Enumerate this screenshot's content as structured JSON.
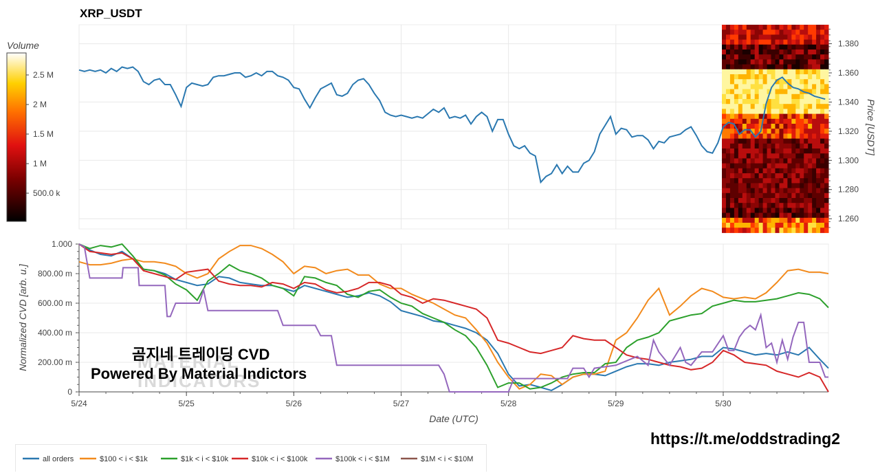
{
  "title": "XRP_USDT",
  "colorbar": {
    "label": "Volume",
    "ticks": [
      "2.5 M",
      "2 M",
      "1.5 M",
      "1 M",
      "500.0 k"
    ]
  },
  "watermark": {
    "line1": "곰지네 트레이딩 CVD",
    "line2": "Powered By Material Indictors",
    "logo_line1": "MATERIAL",
    "logo_line2": "INDICATORS",
    "url": "https://t.me/oddstrading2"
  },
  "chart_data": [
    {
      "type": "line",
      "panel": "price",
      "ylabel": "Price [USDT]",
      "ylim": [
        1.253,
        1.393
      ],
      "y_ticks": [
        "1.380",
        "1.360",
        "1.340",
        "1.320",
        "1.300",
        "1.280",
        "1.260"
      ],
      "x_ticks": [
        "5/24",
        "5/25",
        "5/26",
        "5/27",
        "5/28",
        "5/29",
        "5/30"
      ],
      "xlim_days": [
        0,
        6.98
      ],
      "series": [
        {
          "color": "#2a78b0",
          "x": [
            0,
            0.05,
            0.1,
            0.15,
            0.2,
            0.25,
            0.3,
            0.35,
            0.4,
            0.45,
            0.5,
            0.55,
            0.6,
            0.65,
            0.7,
            0.75,
            0.8,
            0.85,
            0.9,
            0.95,
            1.0,
            1.05,
            1.1,
            1.15,
            1.2,
            1.25,
            1.3,
            1.35,
            1.4,
            1.45,
            1.5,
            1.55,
            1.6,
            1.65,
            1.7,
            1.75,
            1.8,
            1.85,
            1.9,
            1.95,
            2.0,
            2.05,
            2.1,
            2.15,
            2.2,
            2.25,
            2.3,
            2.35,
            2.4,
            2.45,
            2.5,
            2.55,
            2.6,
            2.65,
            2.7,
            2.75,
            2.8,
            2.85,
            2.9,
            2.95,
            3.0,
            3.05,
            3.1,
            3.15,
            3.2,
            3.25,
            3.3,
            3.35,
            3.4,
            3.45,
            3.5,
            3.55,
            3.6,
            3.65,
            3.7,
            3.75,
            3.8,
            3.85,
            3.9,
            3.95,
            4.0,
            4.05,
            4.1,
            4.15,
            4.2,
            4.25,
            4.3,
            4.35,
            4.4,
            4.45,
            4.5,
            4.55,
            4.6,
            4.65,
            4.7,
            4.75,
            4.8,
            4.85,
            4.9,
            4.95,
            5.0,
            5.05,
            5.1,
            5.15,
            5.2,
            5.25,
            5.3,
            5.35,
            5.4,
            5.45,
            5.5,
            5.55,
            5.6,
            5.65,
            5.7,
            5.75,
            5.8,
            5.85,
            5.9,
            5.95,
            6.0,
            6.05,
            6.1,
            6.15,
            6.2,
            6.25,
            6.3,
            6.35,
            6.4,
            6.45,
            6.5,
            6.55,
            6.6,
            6.65,
            6.7,
            6.75,
            6.8,
            6.85,
            6.9,
            6.95
          ],
          "y": [
            1.362,
            1.361,
            1.362,
            1.361,
            1.362,
            1.36,
            1.363,
            1.361,
            1.364,
            1.363,
            1.364,
            1.361,
            1.354,
            1.352,
            1.355,
            1.356,
            1.352,
            1.352,
            1.345,
            1.337,
            1.35,
            1.353,
            1.352,
            1.351,
            1.352,
            1.357,
            1.358,
            1.358,
            1.359,
            1.36,
            1.36,
            1.357,
            1.358,
            1.36,
            1.358,
            1.361,
            1.361,
            1.358,
            1.357,
            1.355,
            1.35,
            1.349,
            1.342,
            1.336,
            1.343,
            1.349,
            1.351,
            1.353,
            1.345,
            1.344,
            1.346,
            1.352,
            1.355,
            1.356,
            1.352,
            1.346,
            1.341,
            1.333,
            1.331,
            1.33,
            1.331,
            1.33,
            1.329,
            1.33,
            1.329,
            1.332,
            1.335,
            1.333,
            1.336,
            1.329,
            1.33,
            1.329,
            1.331,
            1.325,
            1.33,
            1.333,
            1.33,
            1.32,
            1.328,
            1.328,
            1.318,
            1.31,
            1.308,
            1.31,
            1.305,
            1.303,
            1.285,
            1.289,
            1.291,
            1.297,
            1.291,
            1.296,
            1.292,
            1.292,
            1.298,
            1.3,
            1.306,
            1.318,
            1.324,
            1.33,
            1.318,
            1.322,
            1.321,
            1.316,
            1.317,
            1.317,
            1.314,
            1.308,
            1.313,
            1.312,
            1.316,
            1.317,
            1.318,
            1.321,
            1.323,
            1.317,
            1.31,
            1.306,
            1.305,
            1.312,
            1.323,
            1.326,
            1.325,
            1.318,
            1.321,
            1.321,
            1.316,
            1.32,
            1.339,
            1.35,
            1.355,
            1.357,
            1.353,
            1.35,
            1.349,
            1.347,
            1.346,
            1.344,
            1.343,
            1.342
          ]
        }
      ]
    },
    {
      "type": "line",
      "panel": "cvd",
      "xlabel": "Date (UTC)",
      "ylabel": "Normalized CVD [arb. u.]",
      "ylim": [
        0,
        1.0
      ],
      "y_ticks": [
        "1.000",
        "800.00 m",
        "600.00 m",
        "400.00 m",
        "200.00 m",
        "0"
      ],
      "x_ticks": [
        "5/24",
        "5/25",
        "5/26",
        "5/27",
        "5/28",
        "5/29",
        "5/30"
      ],
      "xlim_days": [
        0,
        6.98
      ],
      "series": [
        {
          "name": "all orders",
          "color": "#2a78b0",
          "x": [
            0,
            0.1,
            0.2,
            0.3,
            0.4,
            0.5,
            0.6,
            0.7,
            0.8,
            0.9,
            1.0,
            1.1,
            1.2,
            1.3,
            1.4,
            1.5,
            1.6,
            1.7,
            1.8,
            1.9,
            2.0,
            2.1,
            2.2,
            2.3,
            2.4,
            2.5,
            2.6,
            2.7,
            2.8,
            2.9,
            3.0,
            3.1,
            3.2,
            3.3,
            3.4,
            3.5,
            3.6,
            3.7,
            3.8,
            3.9,
            4.0,
            4.1,
            4.2,
            4.3,
            4.4,
            4.5,
            4.6,
            4.7,
            4.8,
            4.9,
            5.0,
            5.1,
            5.2,
            5.3,
            5.4,
            5.5,
            5.6,
            5.7,
            5.8,
            5.9,
            6.0,
            6.1,
            6.2,
            6.3,
            6.4,
            6.5,
            6.6,
            6.7,
            6.8,
            6.9,
            6.98
          ],
          "y": [
            1.0,
            0.96,
            0.93,
            0.92,
            0.95,
            0.9,
            0.83,
            0.82,
            0.8,
            0.76,
            0.74,
            0.72,
            0.73,
            0.78,
            0.77,
            0.74,
            0.73,
            0.72,
            0.72,
            0.7,
            0.68,
            0.72,
            0.7,
            0.68,
            0.66,
            0.64,
            0.65,
            0.67,
            0.65,
            0.61,
            0.55,
            0.53,
            0.51,
            0.48,
            0.47,
            0.45,
            0.43,
            0.4,
            0.35,
            0.26,
            0.12,
            0.04,
            0.05,
            0.03,
            0.01,
            0.05,
            0.1,
            0.12,
            0.12,
            0.11,
            0.14,
            0.17,
            0.19,
            0.19,
            0.18,
            0.2,
            0.21,
            0.22,
            0.24,
            0.24,
            0.3,
            0.29,
            0.27,
            0.25,
            0.26,
            0.25,
            0.27,
            0.25,
            0.3,
            0.22,
            0.16
          ]
        },
        {
          "name": "$100 < i < $1k",
          "color": "#f28a1c",
          "x": [
            0,
            0.1,
            0.2,
            0.3,
            0.4,
            0.5,
            0.6,
            0.7,
            0.8,
            0.9,
            1.0,
            1.1,
            1.2,
            1.3,
            1.4,
            1.5,
            1.6,
            1.7,
            1.8,
            1.9,
            2.0,
            2.1,
            2.2,
            2.3,
            2.4,
            2.5,
            2.6,
            2.7,
            2.8,
            2.9,
            3.0,
            3.1,
            3.2,
            3.3,
            3.4,
            3.5,
            3.6,
            3.7,
            3.8,
            3.9,
            4.0,
            4.1,
            4.2,
            4.3,
            4.4,
            4.5,
            4.6,
            4.7,
            4.8,
            4.9,
            5.0,
            5.1,
            5.2,
            5.3,
            5.4,
            5.5,
            5.6,
            5.7,
            5.8,
            5.9,
            6.0,
            6.1,
            6.2,
            6.3,
            6.4,
            6.5,
            6.6,
            6.7,
            6.8,
            6.9,
            6.98
          ],
          "y": [
            0.88,
            0.86,
            0.86,
            0.87,
            0.89,
            0.9,
            0.88,
            0.88,
            0.87,
            0.85,
            0.8,
            0.77,
            0.8,
            0.9,
            0.95,
            0.99,
            0.99,
            0.97,
            0.93,
            0.88,
            0.8,
            0.85,
            0.84,
            0.8,
            0.82,
            0.83,
            0.79,
            0.79,
            0.73,
            0.7,
            0.7,
            0.66,
            0.63,
            0.6,
            0.56,
            0.52,
            0.5,
            0.42,
            0.33,
            0.2,
            0.1,
            0.02,
            0.05,
            0.12,
            0.11,
            0.05,
            0.1,
            0.12,
            0.12,
            0.14,
            0.35,
            0.4,
            0.5,
            0.62,
            0.7,
            0.52,
            0.58,
            0.65,
            0.7,
            0.68,
            0.64,
            0.63,
            0.64,
            0.63,
            0.67,
            0.74,
            0.82,
            0.83,
            0.81,
            0.81,
            0.8
          ]
        },
        {
          "name": "$1k < i < $10k",
          "color": "#2ca02c",
          "x": [
            0,
            0.1,
            0.2,
            0.3,
            0.4,
            0.5,
            0.6,
            0.7,
            0.8,
            0.9,
            1.0,
            1.1,
            1.2,
            1.3,
            1.4,
            1.5,
            1.6,
            1.7,
            1.8,
            1.9,
            2.0,
            2.1,
            2.2,
            2.3,
            2.4,
            2.5,
            2.6,
            2.7,
            2.8,
            2.9,
            3.0,
            3.1,
            3.2,
            3.3,
            3.4,
            3.5,
            3.6,
            3.7,
            3.8,
            3.9,
            4.0,
            4.1,
            4.2,
            4.3,
            4.4,
            4.5,
            4.6,
            4.7,
            4.8,
            4.9,
            5.0,
            5.1,
            5.2,
            5.3,
            5.4,
            5.5,
            5.6,
            5.7,
            5.8,
            5.9,
            6.0,
            6.1,
            6.2,
            6.3,
            6.4,
            6.5,
            6.6,
            6.7,
            6.8,
            6.9,
            6.98
          ],
          "y": [
            1.0,
            0.97,
            0.99,
            0.98,
            1.0,
            0.92,
            0.83,
            0.82,
            0.79,
            0.73,
            0.69,
            0.62,
            0.75,
            0.8,
            0.86,
            0.82,
            0.8,
            0.77,
            0.72,
            0.7,
            0.65,
            0.78,
            0.77,
            0.74,
            0.72,
            0.66,
            0.64,
            0.68,
            0.69,
            0.64,
            0.6,
            0.58,
            0.53,
            0.5,
            0.47,
            0.42,
            0.38,
            0.3,
            0.18,
            0.03,
            0.06,
            0.06,
            0.02,
            0.03,
            0.06,
            0.1,
            0.12,
            0.13,
            0.13,
            0.19,
            0.2,
            0.3,
            0.35,
            0.37,
            0.4,
            0.48,
            0.5,
            0.52,
            0.53,
            0.58,
            0.6,
            0.62,
            0.61,
            0.61,
            0.62,
            0.63,
            0.65,
            0.67,
            0.66,
            0.63,
            0.57
          ]
        },
        {
          "name": "$10k < i < $100k",
          "color": "#d62728",
          "x": [
            0,
            0.1,
            0.2,
            0.3,
            0.4,
            0.5,
            0.6,
            0.7,
            0.8,
            0.9,
            1.0,
            1.1,
            1.2,
            1.3,
            1.4,
            1.5,
            1.6,
            1.7,
            1.8,
            1.9,
            2.0,
            2.1,
            2.2,
            2.3,
            2.4,
            2.5,
            2.6,
            2.7,
            2.8,
            2.9,
            3.0,
            3.1,
            3.2,
            3.3,
            3.4,
            3.5,
            3.6,
            3.7,
            3.8,
            3.9,
            4.0,
            4.1,
            4.2,
            4.3,
            4.4,
            4.5,
            4.6,
            4.7,
            4.8,
            4.9,
            5.0,
            5.1,
            5.2,
            5.3,
            5.4,
            5.5,
            5.6,
            5.7,
            5.8,
            5.9,
            6.0,
            6.1,
            6.2,
            6.3,
            6.4,
            6.5,
            6.6,
            6.7,
            6.8,
            6.9,
            6.98
          ],
          "y": [
            1.0,
            0.95,
            0.94,
            0.93,
            0.94,
            0.9,
            0.82,
            0.8,
            0.78,
            0.76,
            0.81,
            0.82,
            0.83,
            0.75,
            0.73,
            0.72,
            0.72,
            0.71,
            0.74,
            0.73,
            0.7,
            0.74,
            0.73,
            0.69,
            0.67,
            0.68,
            0.7,
            0.74,
            0.74,
            0.72,
            0.66,
            0.64,
            0.6,
            0.63,
            0.62,
            0.6,
            0.58,
            0.56,
            0.5,
            0.35,
            0.33,
            0.3,
            0.27,
            0.26,
            0.28,
            0.3,
            0.38,
            0.36,
            0.35,
            0.35,
            0.3,
            0.25,
            0.23,
            0.22,
            0.2,
            0.18,
            0.17,
            0.15,
            0.16,
            0.2,
            0.28,
            0.25,
            0.2,
            0.19,
            0.18,
            0.14,
            0.12,
            0.1,
            0.13,
            0.1,
            0.0
          ]
        },
        {
          "name": "$100k < i < $1M",
          "color": "#9467bd",
          "x": [
            0,
            0.05,
            0.1,
            0.15,
            0.4,
            0.41,
            0.55,
            0.56,
            0.8,
            0.82,
            0.85,
            0.9,
            1.12,
            1.16,
            1.2,
            1.22,
            1.85,
            1.9,
            2.2,
            2.25,
            2.35,
            2.4,
            3.35,
            3.4,
            3.45,
            4.0,
            4.05,
            4.1,
            4.2,
            4.25,
            4.55,
            4.6,
            4.7,
            4.75,
            4.8,
            5.0,
            5.2,
            5.3,
            5.35,
            5.4,
            5.5,
            5.6,
            5.65,
            5.7,
            5.8,
            5.9,
            6.0,
            6.05,
            6.1,
            6.15,
            6.2,
            6.25,
            6.3,
            6.35,
            6.4,
            6.45,
            6.5,
            6.55,
            6.6,
            6.65,
            6.7,
            6.75,
            6.8,
            6.9,
            6.95,
            6.98
          ],
          "y": [
            1.0,
            0.98,
            0.77,
            0.77,
            0.77,
            0.84,
            0.84,
            0.72,
            0.72,
            0.51,
            0.51,
            0.6,
            0.6,
            0.69,
            0.55,
            0.55,
            0.55,
            0.45,
            0.45,
            0.38,
            0.38,
            0.18,
            0.18,
            0.12,
            0.0,
            0.0,
            0.09,
            0.09,
            0.09,
            0.09,
            0.09,
            0.16,
            0.16,
            0.1,
            0.16,
            0.18,
            0.24,
            0.18,
            0.35,
            0.27,
            0.18,
            0.3,
            0.2,
            0.18,
            0.27,
            0.27,
            0.38,
            0.28,
            0.28,
            0.37,
            0.42,
            0.45,
            0.42,
            0.52,
            0.3,
            0.33,
            0.2,
            0.35,
            0.22,
            0.37,
            0.47,
            0.47,
            0.2,
            0.2,
            0.1,
            0.1
          ]
        },
        {
          "name": "$1M < i < $10M",
          "color": "#8c564b",
          "x": [],
          "y": []
        }
      ]
    }
  ]
}
